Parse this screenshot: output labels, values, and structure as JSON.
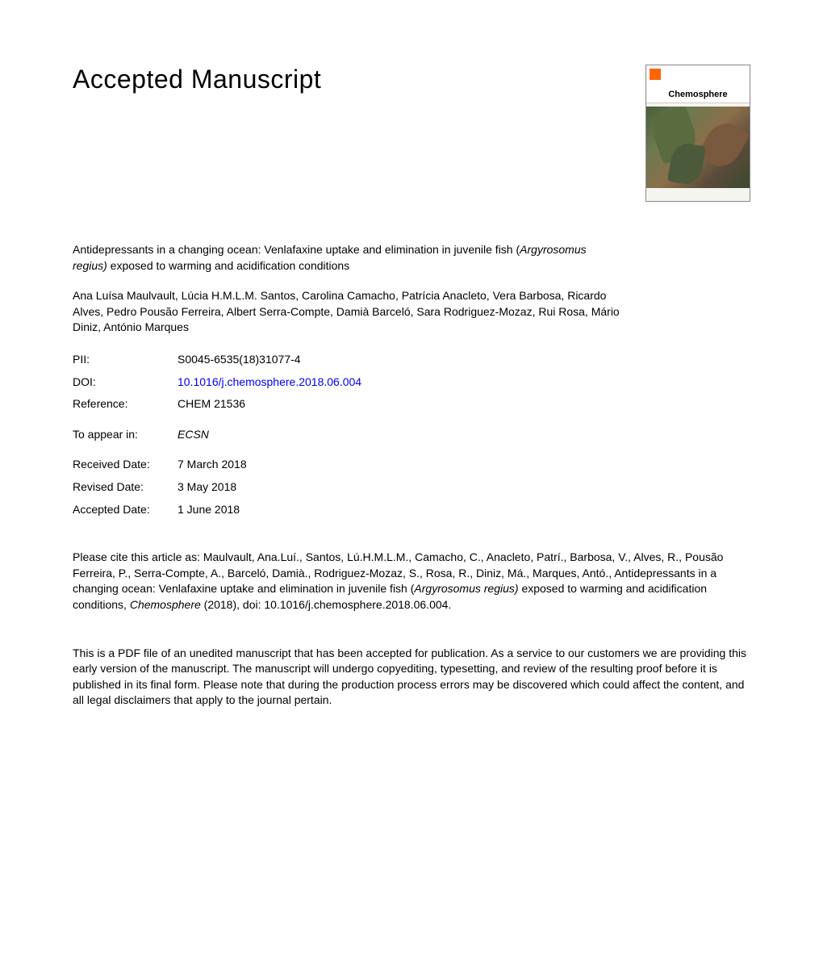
{
  "header": {
    "title": "Accepted Manuscript",
    "journal_name": "Chemosphere"
  },
  "article": {
    "title_part1": "Antidepressants in a changing ocean: Venlafaxine uptake and elimination in juvenile fish (",
    "title_italic": "Argyrosomus regius)",
    "title_part2": " exposed to warming and acidification conditions",
    "authors": "Ana Luísa Maulvault, Lúcia H.M.L.M. Santos, Carolina Camacho, Patrícia Anacleto, Vera Barbosa, Ricardo Alves, Pedro Pousão Ferreira, Albert Serra-Compte, Damià Barceló, Sara Rodriguez-Mozaz, Rui Rosa, Mário Diniz, António Marques"
  },
  "meta": {
    "pii_label": "PII:",
    "pii_value": "S0045-6535(18)31077-4",
    "doi_label": "DOI:",
    "doi_value": "10.1016/j.chemosphere.2018.06.004",
    "reference_label": "Reference:",
    "reference_value": "CHEM 21536",
    "appear_label": "To appear in:",
    "appear_value": "ECSN",
    "received_label": "Received Date:",
    "received_value": "7 March 2018",
    "revised_label": "Revised Date:",
    "revised_value": "3 May 2018",
    "accepted_label": "Accepted Date:",
    "accepted_value": "1 June 2018"
  },
  "citation": {
    "prefix": "Please cite this article as: Maulvault, Ana.Luí., Santos, Lú.H.M.L.M., Camacho, C., Anacleto, Patrí., Barbosa, V., Alves, R., Pousão Ferreira, P., Serra-Compte, A., Barceló, Damià., Rodriguez-Mozaz, S., Rosa, R., Diniz, Má., Marques, Antó., Antidepressants in a changing ocean: Venlafaxine uptake and elimination in juvenile fish (",
    "italic1": "Argyrosomus regius)",
    "mid": " exposed to warming and acidification conditions, ",
    "italic2": "Chemosphere",
    "suffix": " (2018), doi: 10.1016/j.chemosphere.2018.06.004."
  },
  "disclaimer": "This is a PDF file of an unedited manuscript that has been accepted for publication. As a service to our customers we are providing this early version of the manuscript. The manuscript will undergo copyediting, typesetting, and review of the resulting proof before it is published in its final form. Please note that during the production process errors may be discovered which could affect the content, and all legal disclaimers that apply to the journal pertain."
}
